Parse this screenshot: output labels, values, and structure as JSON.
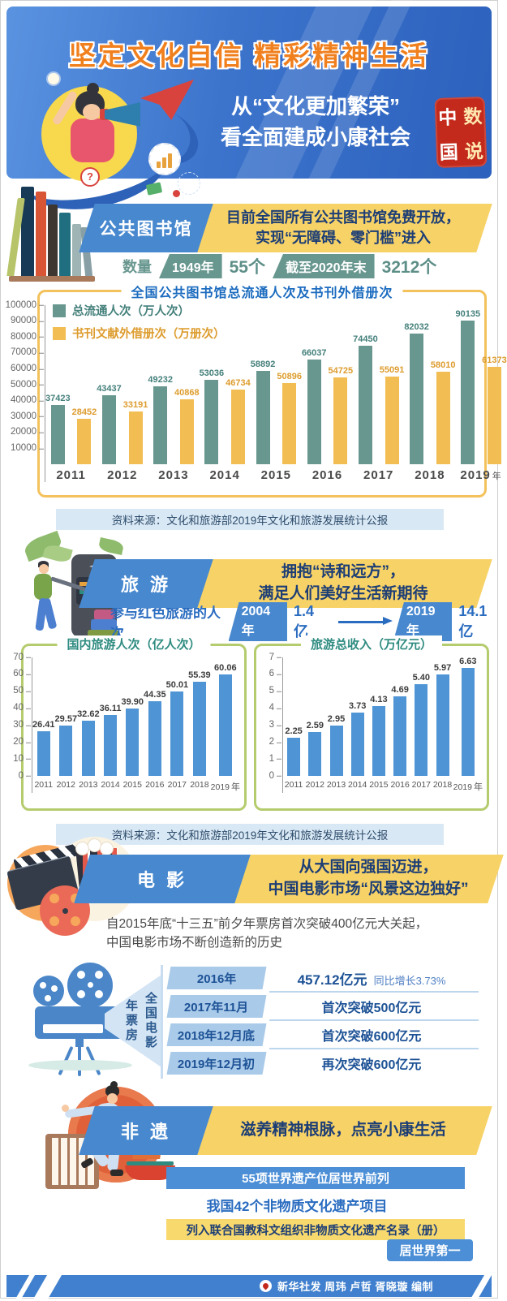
{
  "header": {
    "main_title": "坚定文化自信 精彩精神生活",
    "subtitle_line1": "从“文化更加繁荣”",
    "subtitle_line2": "看全面建成小康社会",
    "seal": {
      "tl": "中",
      "tr": "数",
      "bl": "国",
      "br": "说"
    }
  },
  "library": {
    "section_title": "公共图书馆",
    "headline_line1": "目前全国所有公共图书馆免费开放，",
    "headline_line2": "实现“无障碍、零门槛”进入",
    "count_label": "数量",
    "count_from_badge": "1949年",
    "count_from_value": "55个",
    "count_to_badge": "截至2020年末",
    "count_to_value": "3212个"
  },
  "source_note": "资料来源：文化和旅游部2019年文化和旅游发展统计公报",
  "tourism": {
    "section_title": "旅 游",
    "headline_line1": "拥抱“诗和远方”，",
    "headline_line2": "满足人们美好生活新期待",
    "red_tourism_label": "参与红色旅游的人次",
    "red_from_badge": "2004年",
    "red_from_value": "1.4 亿",
    "red_to_badge": "2019年",
    "red_to_value": "14.1亿"
  },
  "movie": {
    "section_title": "电 影",
    "headline_line1": "从大国向强国迈进，",
    "headline_line2": "中国电影市场“风景这边独好”",
    "intro_line1": "自2015年底“十三五”前夕年票房首次突破400亿元大关起，",
    "intro_line2": "中国电影市场不断创造新的历史",
    "box_office_label_left": "年票房",
    "box_office_label_right": "全国电影",
    "milestones": [
      {
        "period": "2016年",
        "value": "457.12亿元",
        "note": "同比增长3.73%"
      },
      {
        "period": "2017年11月",
        "value": "首次突破500亿元",
        "note": ""
      },
      {
        "period": "2018年12月底",
        "value": "首次突破600亿元",
        "note": ""
      },
      {
        "period": "2019年12月初",
        "value": "再次突破600亿元",
        "note": ""
      }
    ]
  },
  "heritage": {
    "section_title": "非 遗",
    "headline": "滋养精神根脉，点亮小康生活",
    "stat_world_heritage": "55项世界遗产位居世界前列",
    "stat_ich_projects": "我国42个非物质文化遗产项目",
    "stat_unesco_list": "列入联合国教科文组织非物质文化遗产名录（册）",
    "stat_rank": "居世界第一"
  },
  "footer": {
    "credit": "新华社发 周玮 卢哲 胥晓璇 编制"
  },
  "chart_data": [
    {
      "id": "library-circulation",
      "type": "bar",
      "title": "全国公共图书馆总流通人次及书刊外借册次",
      "categories": [
        "2011",
        "2012",
        "2013",
        "2014",
        "2015",
        "2016",
        "2017",
        "2018",
        "2019"
      ],
      "x_suffix": "年",
      "ylim": [
        0,
        100000
      ],
      "yticks": [
        10000,
        20000,
        30000,
        40000,
        50000,
        60000,
        70000,
        80000,
        90000,
        100000
      ],
      "legend_position": "top-left",
      "grid": false,
      "series": [
        {
          "name": "总流通人次（万人次）",
          "color": "#68978f",
          "label_color": "#44807b",
          "values": [
            "37423",
            "43437",
            "49232",
            "53036",
            "58892",
            "66037",
            "74450",
            "82032",
            "90135"
          ]
        },
        {
          "name": "书刊文献外借册次（万册次）",
          "color": "#f2bd53",
          "label_color": "#dd9c2e",
          "values": [
            "28452",
            "33191",
            "40868",
            "46734",
            "50896",
            "54725",
            "55091",
            "58010",
            "61373"
          ]
        }
      ]
    },
    {
      "id": "domestic-tourists",
      "type": "bar",
      "title": "国内旅游人次（亿人次）",
      "categories": [
        "2011",
        "2012",
        "2013",
        "2014",
        "2015",
        "2016",
        "2017",
        "2018",
        "2019"
      ],
      "x_suffix": "年",
      "ylim": [
        0,
        70
      ],
      "yticks": [
        0,
        10,
        20,
        30,
        40,
        50,
        60,
        70
      ],
      "grid": false,
      "bar_color": "#4f94d4",
      "label_color": "#3c3c3c",
      "values": [
        "26.41",
        "29.57",
        "32.62",
        "36.11",
        "39.90",
        "44.35",
        "50.01",
        "55.39",
        "60.06"
      ]
    },
    {
      "id": "tourism-revenue",
      "type": "bar",
      "title": "旅游总收入（万亿元）",
      "categories": [
        "2011",
        "2012",
        "2013",
        "2014",
        "2015",
        "2016",
        "2017",
        "2018",
        "2019"
      ],
      "x_suffix": "年",
      "ylim": [
        0,
        7
      ],
      "yticks": [
        0,
        1,
        2,
        3,
        4,
        5,
        6,
        7
      ],
      "grid": false,
      "bar_color": "#4f94d4",
      "label_color": "#3c3c3c",
      "values": [
        "2.25",
        "2.59",
        "2.95",
        "3.73",
        "4.13",
        "4.69",
        "5.40",
        "5.97",
        "6.63"
      ]
    }
  ]
}
